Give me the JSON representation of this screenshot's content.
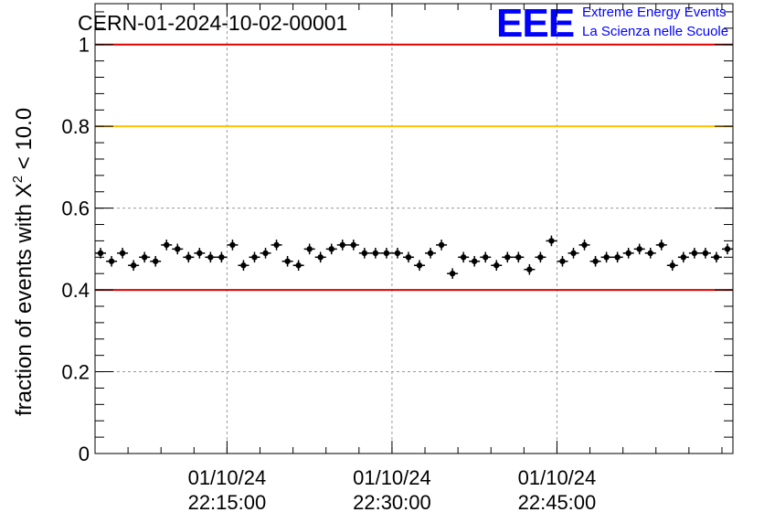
{
  "chart_data": {
    "type": "scatter",
    "title": "CERN-01-2024-10-02-00001",
    "xlabel": "",
    "ylabel_main": "fraction of events with X",
    "ylabel_sup": "2",
    "ylabel_tail": " < 10.0",
    "ylim": [
      0,
      1.1
    ],
    "yticks": [
      0,
      0.2,
      0.4,
      0.6,
      0.8,
      1
    ],
    "ytick_labels": [
      "0",
      "0.2",
      "0.4",
      "0.6",
      "0.8",
      "1"
    ],
    "xlim": [
      "01/10/24 22:03:00",
      "01/10/24 23:01:00"
    ],
    "xticks": [
      {
        "date": "01/10/24",
        "time": "22:15:00"
      },
      {
        "date": "01/10/24",
        "time": "22:30:00"
      },
      {
        "date": "01/10/24",
        "time": "22:45:00"
      }
    ],
    "grid": true,
    "reference_lines": [
      {
        "y": 1.0,
        "color": "#e00000"
      },
      {
        "y": 0.8,
        "color": "#ffc000"
      },
      {
        "y": 0.4,
        "color": "#e00000"
      }
    ],
    "series": [
      {
        "marker_color": "#000000",
        "x": [
          "22:03:30",
          "22:04:30",
          "22:05:30",
          "22:06:30",
          "22:07:30",
          "22:08:30",
          "22:09:30",
          "22:10:30",
          "22:11:30",
          "22:12:30",
          "22:13:30",
          "22:14:30",
          "22:15:30",
          "22:16:30",
          "22:17:30",
          "22:18:30",
          "22:19:30",
          "22:20:30",
          "22:21:30",
          "22:22:30",
          "22:23:30",
          "22:24:30",
          "22:25:30",
          "22:26:30",
          "22:27:30",
          "22:28:30",
          "22:29:30",
          "22:30:30",
          "22:31:30",
          "22:32:30",
          "22:33:30",
          "22:34:30",
          "22:35:30",
          "22:36:30",
          "22:37:30",
          "22:38:30",
          "22:39:30",
          "22:40:30",
          "22:41:30",
          "22:42:30",
          "22:43:30",
          "22:44:30",
          "22:45:30",
          "22:46:30",
          "22:47:30",
          "22:48:30",
          "22:49:30",
          "22:50:30",
          "22:51:30",
          "22:52:30",
          "22:53:30",
          "22:54:30",
          "22:55:30",
          "22:56:30",
          "22:57:30",
          "22:58:30",
          "22:59:30",
          "23:00:30"
        ],
        "y": [
          0.49,
          0.47,
          0.49,
          0.46,
          0.48,
          0.47,
          0.51,
          0.5,
          0.48,
          0.49,
          0.48,
          0.48,
          0.51,
          0.46,
          0.48,
          0.49,
          0.51,
          0.47,
          0.46,
          0.5,
          0.48,
          0.5,
          0.51,
          0.51,
          0.49,
          0.49,
          0.49,
          0.49,
          0.48,
          0.46,
          0.49,
          0.51,
          0.44,
          0.48,
          0.47,
          0.48,
          0.46,
          0.48,
          0.48,
          0.45,
          0.48,
          0.52,
          0.47,
          0.49,
          0.51,
          0.47,
          0.48,
          0.48,
          0.49,
          0.5,
          0.49,
          0.51,
          0.46,
          0.48,
          0.49,
          0.49,
          0.48,
          0.5
        ],
        "yerr": 0.013
      }
    ]
  },
  "logo": {
    "mark": "EEE",
    "line1": "Extreme Energy Events",
    "line2": "La Scienza nelle Scuole",
    "color": "#0000ff"
  }
}
